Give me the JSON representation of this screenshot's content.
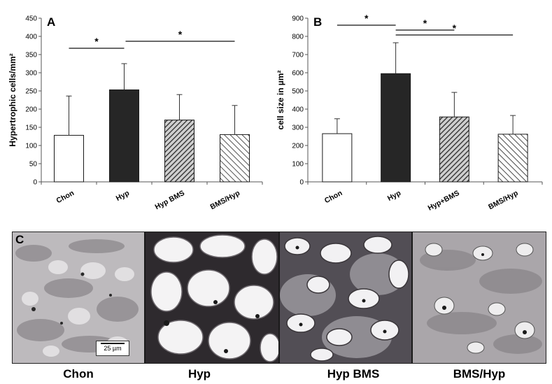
{
  "chart_data": [
    {
      "type": "bar",
      "panel": "A",
      "ylabel": "Hypertrophic cells/mm²",
      "ylim": [
        0,
        450
      ],
      "yticks": [
        0,
        50,
        100,
        150,
        200,
        250,
        300,
        350,
        400,
        450
      ],
      "categories": [
        "Chon",
        "Hyp",
        "Hyp BMS",
        "BMS/Hyp"
      ],
      "values": [
        128,
        253,
        170,
        130
      ],
      "error_upper": [
        108,
        72,
        70,
        80
      ],
      "bar_styles": [
        "white",
        "black",
        "dense-hatch",
        "sparse-hatch"
      ],
      "significance": [
        {
          "from": 0,
          "to": 1,
          "label": "*"
        },
        {
          "from": 1,
          "to": 3,
          "label": "*"
        }
      ]
    },
    {
      "type": "bar",
      "panel": "B",
      "ylabel": "cell size in µm²",
      "ylim": [
        0,
        900
      ],
      "yticks": [
        0,
        100,
        200,
        300,
        400,
        500,
        600,
        700,
        800,
        900
      ],
      "categories": [
        "Chon",
        "Hyp",
        "Hyp+BMS",
        "BMS/Hyp"
      ],
      "values": [
        265,
        595,
        357,
        262
      ],
      "error_upper": [
        82,
        170,
        135,
        103
      ],
      "bar_styles": [
        "white",
        "black",
        "dense-hatch",
        "sparse-hatch"
      ],
      "significance": [
        {
          "from": 0,
          "to": 1,
          "label": "*"
        },
        {
          "from": 1,
          "to": 2,
          "label": "*"
        },
        {
          "from": 1,
          "to": 3,
          "label": "*"
        }
      ]
    }
  ],
  "micrographs": {
    "panel": "C",
    "scale_bar": "25 µm",
    "labels": [
      "Chon",
      "Hyp",
      "Hyp BMS",
      "BMS/Hyp"
    ]
  }
}
